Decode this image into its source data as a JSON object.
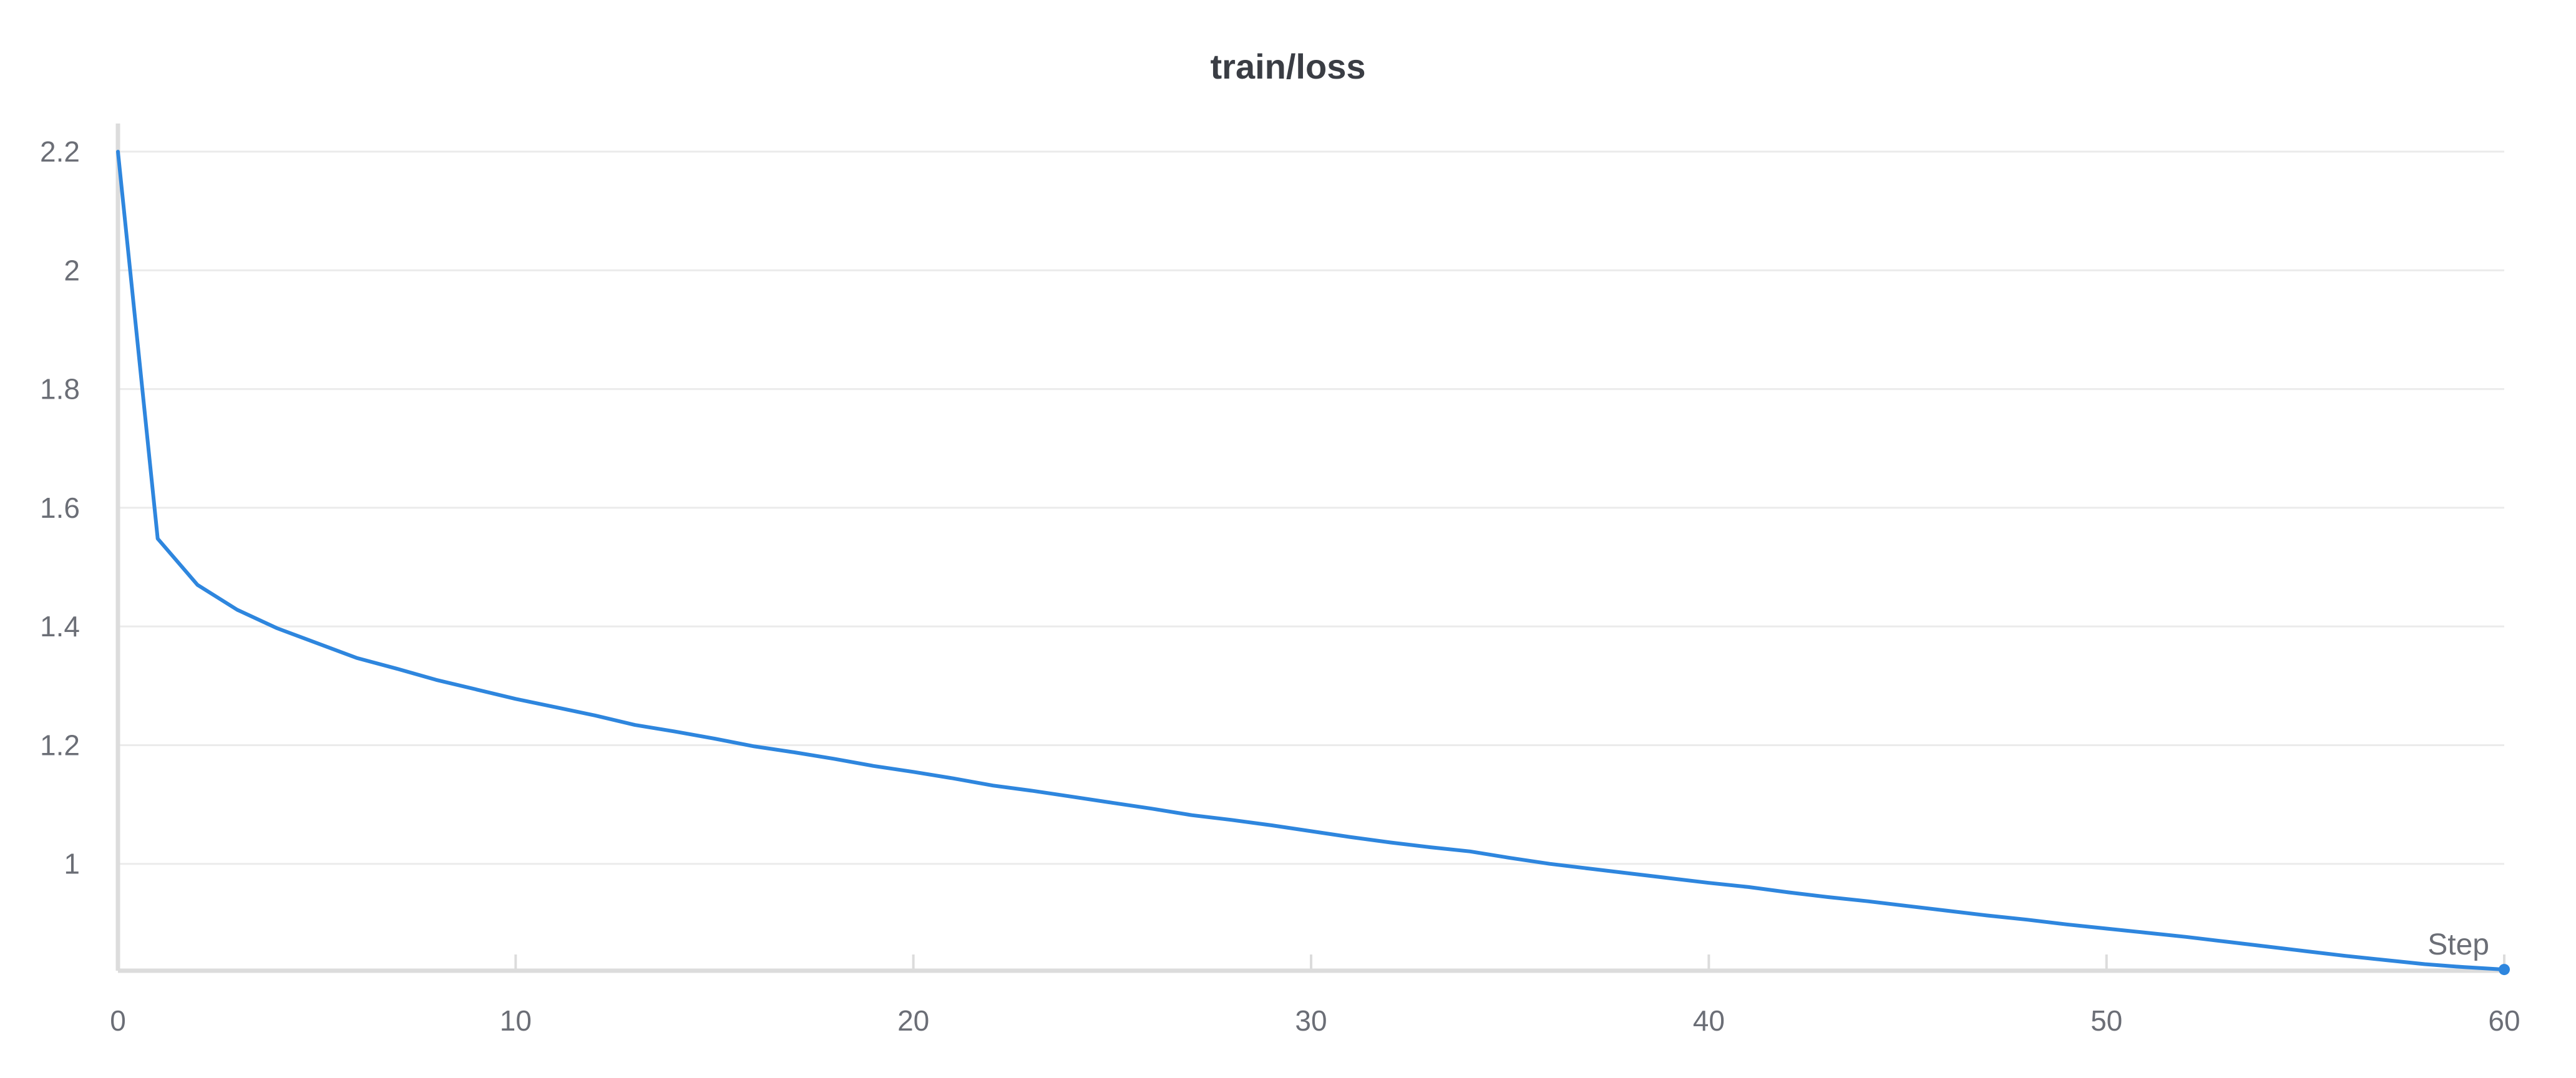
{
  "chart_data": {
    "type": "line",
    "title": "train/loss",
    "xlabel": "Step",
    "ylabel": "",
    "xlim": [
      0,
      60
    ],
    "ylim": [
      0.82,
      2.24
    ],
    "x_ticks": [
      0,
      10,
      20,
      30,
      40,
      50,
      60
    ],
    "x_tick_labels": [
      "0",
      "10",
      "20",
      "30",
      "40",
      "50",
      "60"
    ],
    "y_ticks": [
      1,
      1.2,
      1.4,
      1.6,
      1.8,
      2,
      2.2
    ],
    "y_tick_labels": [
      "1",
      "1.2",
      "1.4",
      "1.6",
      "1.8",
      "2",
      "2.2"
    ],
    "grid": true,
    "legend": "none",
    "color": "#2e86de",
    "series": [
      {
        "x": [
          0,
          1,
          2,
          3,
          4,
          5,
          6,
          7,
          8,
          9,
          10,
          11,
          12,
          13,
          14,
          15,
          16,
          17,
          18,
          19,
          20,
          21,
          22,
          23,
          24,
          25,
          26,
          27,
          28,
          29,
          30,
          31,
          32,
          33,
          34,
          35,
          36,
          37,
          38,
          39,
          40,
          41,
          42,
          43,
          44,
          45,
          46,
          47,
          48,
          49,
          50,
          51,
          52,
          53,
          54,
          55,
          56,
          57,
          58,
          59,
          60
        ],
        "values": [
          2.2,
          1.548,
          1.47,
          1.428,
          1.397,
          1.372,
          1.347,
          1.329,
          1.31,
          1.294,
          1.278,
          1.264,
          1.25,
          1.234,
          1.223,
          1.211,
          1.198,
          1.188,
          1.177,
          1.165,
          1.155,
          1.144,
          1.132,
          1.123,
          1.113,
          1.103,
          1.093,
          1.082,
          1.074,
          1.065,
          1.055,
          1.045,
          1.036,
          1.028,
          1.021,
          1.01,
          1.0,
          0.992,
          0.984,
          0.976,
          0.968,
          0.961,
          0.952,
          0.944,
          0.937,
          0.929,
          0.921,
          0.913,
          0.906,
          0.898,
          0.891,
          0.884,
          0.877,
          0.869,
          0.861,
          0.853,
          0.845,
          0.838,
          0.831,
          0.826,
          0.822
        ]
      }
    ]
  }
}
